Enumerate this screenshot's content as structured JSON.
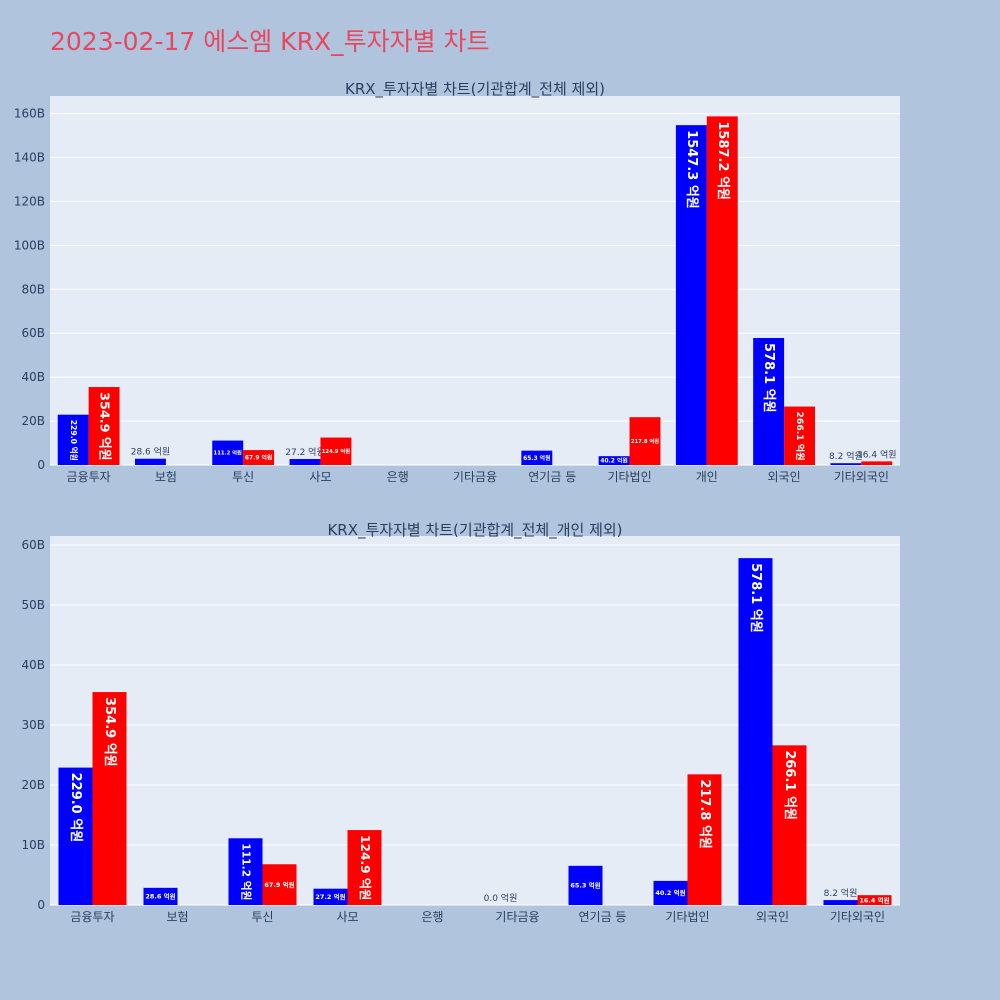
{
  "title": "2023-02-17 에스엠 KRX_투자자별 차트",
  "colors": {
    "background": "#b0c4de",
    "plot_bg": "#e5ecf6",
    "title": "#e8485f",
    "sell": "#0000ff",
    "buy": "#ff0000"
  },
  "chart_data": [
    {
      "type": "bar",
      "title": "KRX_투자자별 차트(기관합계_전체 제외)",
      "categories": [
        "금융투자",
        "보험",
        "투신",
        "사모",
        "은행",
        "기타금융",
        "연기금 등",
        "기타법인",
        "개인",
        "외국인",
        "기타외국인"
      ],
      "ylim": [
        0,
        168
      ],
      "yticks": [
        0,
        20,
        40,
        60,
        80,
        100,
        120,
        140,
        160
      ],
      "ytick_labels": [
        "0",
        "20B",
        "40B",
        "60B",
        "80B",
        "100B",
        "120B",
        "140B",
        "160B"
      ],
      "grid": true,
      "series": [
        {
          "color": "#0000ff",
          "values": [
            22.9,
            2.86,
            11.12,
            2.72,
            0,
            0,
            6.53,
            4.02,
            154.73,
            57.81,
            0.82
          ],
          "labels": [
            "229.0 억원",
            "28.6 억원",
            "111.2 억원",
            "27.2 억원",
            "",
            "",
            "65.3 억원",
            "40.2 억원",
            "1547.3 억원",
            "578.1 억원",
            "8.2 억원"
          ]
        },
        {
          "color": "#ff0000",
          "values": [
            35.49,
            0,
            6.79,
            12.49,
            0,
            0,
            0,
            21.78,
            158.72,
            26.61,
            1.64
          ],
          "labels": [
            "354.9 억원",
            "",
            "67.9 억원",
            "124.9 억원",
            "",
            "",
            "",
            "217.8 억원",
            "1587.2 억원",
            "266.1 억원",
            "16.4 억원"
          ]
        }
      ]
    },
    {
      "type": "bar",
      "title": "KRX_투자자별 차트(기관합계_전체_개인 제외)",
      "categories": [
        "금융투자",
        "보험",
        "투신",
        "사모",
        "은행",
        "기타금융",
        "연기금 등",
        "기타법인",
        "외국인",
        "기타외국인"
      ],
      "ylim": [
        0,
        61.5
      ],
      "yticks": [
        0,
        10,
        20,
        30,
        40,
        50,
        60
      ],
      "ytick_labels": [
        "0",
        "10B",
        "20B",
        "30B",
        "40B",
        "50B",
        "60B"
      ],
      "grid": true,
      "series": [
        {
          "color": "#0000ff",
          "values": [
            22.9,
            2.86,
            11.12,
            2.72,
            0,
            0,
            6.53,
            4.02,
            57.81,
            0.82
          ],
          "labels": [
            "229.0 억원",
            "28.6 억원",
            "111.2 억원",
            "27.2 억원",
            "",
            "0.0 억원",
            "65.3 억원",
            "40.2 억원",
            "578.1 억원",
            "8.2 억원"
          ]
        },
        {
          "color": "#ff0000",
          "values": [
            35.49,
            0,
            6.79,
            12.49,
            0,
            0,
            0,
            21.78,
            26.61,
            1.64
          ],
          "labels": [
            "354.9 억원",
            "",
            "67.9 억원",
            "124.9 억원",
            "",
            "",
            "",
            "217.8 억원",
            "266.1 억원",
            "16.4 억원"
          ]
        }
      ]
    }
  ]
}
